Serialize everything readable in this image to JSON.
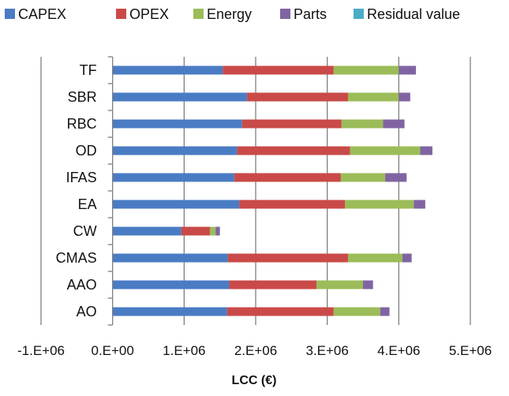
{
  "chart_data": {
    "type": "bar",
    "orientation": "horizontal",
    "stacked": true,
    "xlabel": "LCC (€)",
    "xlim": [
      -1000000,
      5000000
    ],
    "xticks": [
      -1000000,
      0,
      1000000,
      2000000,
      3000000,
      4000000,
      5000000
    ],
    "xtick_labels": [
      "-1.E+06",
      "0.E+00",
      "1.E+06",
      "2.E+06",
      "3.E+06",
      "4.E+06",
      "5.E+06"
    ],
    "grid": "vertical",
    "legend_position": "top",
    "categories": [
      "TF",
      "SBR",
      "RBC",
      "OD",
      "IFAS",
      "EA",
      "CW",
      "CMAS",
      "AAO",
      "AO"
    ],
    "series": [
      {
        "name": "CAPEX",
        "color": "#4a7cc4",
        "values": [
          1540000,
          1880000,
          1810000,
          1740000,
          1700000,
          1770000,
          960000,
          1610000,
          1630000,
          1600000
        ]
      },
      {
        "name": "OPEX",
        "color": "#c94a48",
        "values": [
          1550000,
          1410000,
          1390000,
          1580000,
          1490000,
          1480000,
          400000,
          1680000,
          1220000,
          1490000
        ]
      },
      {
        "name": "Energy",
        "color": "#9bbc58",
        "values": [
          910000,
          710000,
          580000,
          980000,
          620000,
          960000,
          80000,
          760000,
          650000,
          650000
        ]
      },
      {
        "name": "Parts",
        "color": "#8064a2",
        "values": [
          240000,
          160000,
          300000,
          170000,
          300000,
          160000,
          60000,
          130000,
          140000,
          130000
        ]
      },
      {
        "name": "Residual value",
        "color": "#4bacc6",
        "values": [
          0,
          0,
          0,
          0,
          0,
          0,
          0,
          0,
          0,
          0
        ]
      }
    ]
  }
}
